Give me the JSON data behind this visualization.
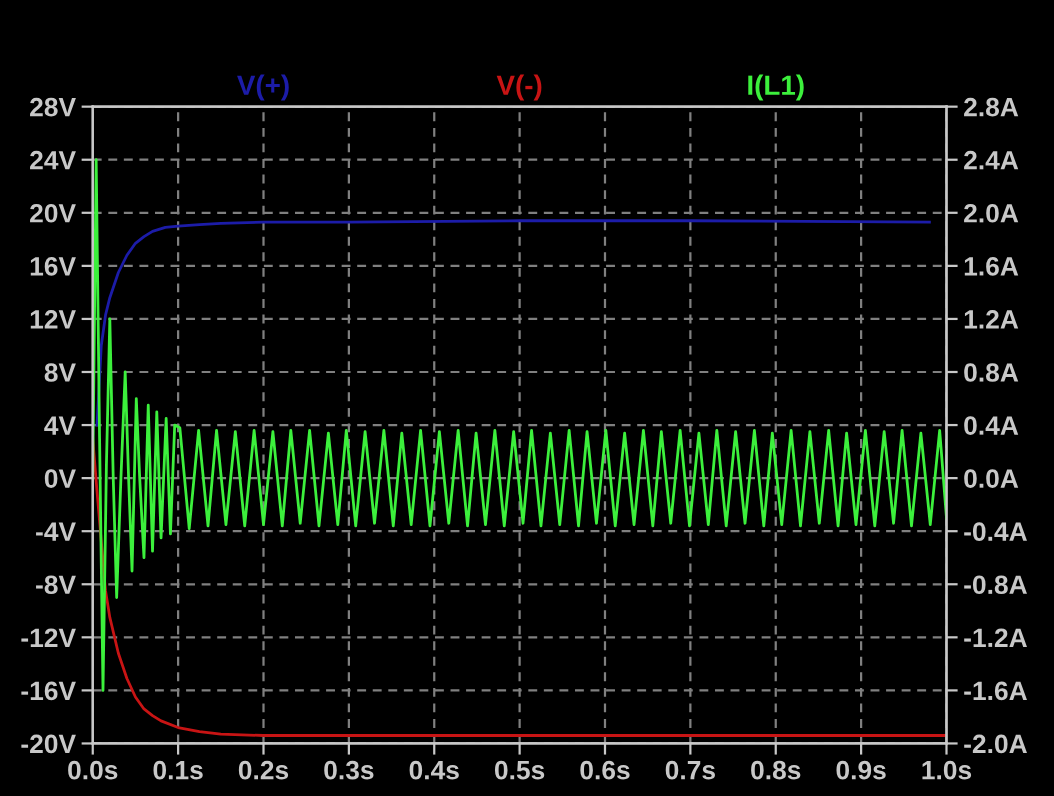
{
  "chart_data": {
    "type": "line",
    "xlim": [
      0,
      1.0
    ],
    "xticks": [
      {
        "value": 0,
        "label": "0.0s"
      },
      {
        "value": 0.1,
        "label": "0.1s"
      },
      {
        "value": 0.2,
        "label": "0.2s"
      },
      {
        "value": 0.3,
        "label": "0.3s"
      },
      {
        "value": 0.4,
        "label": "0.4s"
      },
      {
        "value": 0.5,
        "label": "0.5s"
      },
      {
        "value": 0.6,
        "label": "0.6s"
      },
      {
        "value": 0.7,
        "label": "0.7s"
      },
      {
        "value": 0.8,
        "label": "0.8s"
      },
      {
        "value": 0.9,
        "label": "0.9s"
      },
      {
        "value": 1.0,
        "label": "1.0s"
      }
    ],
    "ylim": [
      -20,
      28
    ],
    "yticks": [
      {
        "value": -20,
        "label": "-20V"
      },
      {
        "value": -16,
        "label": "-16V"
      },
      {
        "value": -12,
        "label": "-12V"
      },
      {
        "value": -8,
        "label": "-8V"
      },
      {
        "value": -4,
        "label": "-4V"
      },
      {
        "value": 0,
        "label": "0V"
      },
      {
        "value": 4,
        "label": "4V"
      },
      {
        "value": 8,
        "label": "8V"
      },
      {
        "value": 12,
        "label": "12V"
      },
      {
        "value": 16,
        "label": "16V"
      },
      {
        "value": 20,
        "label": "20V"
      },
      {
        "value": 24,
        "label": "24V"
      },
      {
        "value": 28,
        "label": "28V"
      }
    ],
    "y2lim": [
      -2.0,
      2.8
    ],
    "y2ticks": [
      {
        "value": -2.0,
        "label": "-2.0A"
      },
      {
        "value": -1.6,
        "label": "-1.6A"
      },
      {
        "value": -1.2,
        "label": "-1.2A"
      },
      {
        "value": -0.8,
        "label": "-0.8A"
      },
      {
        "value": -0.4,
        "label": "-0.4A"
      },
      {
        "value": 0,
        "label": "0.0A"
      },
      {
        "value": 0.4,
        "label": "0.4A"
      },
      {
        "value": 0.8,
        "label": "0.8A"
      },
      {
        "value": 1.2,
        "label": "1.2A"
      },
      {
        "value": 1.6,
        "label": "1.6A"
      },
      {
        "value": 2.0,
        "label": "2.0A"
      },
      {
        "value": 2.4,
        "label": "2.4A"
      },
      {
        "value": 2.8,
        "label": "2.8A"
      }
    ],
    "grid": true,
    "legend": "top",
    "line_style": "solid",
    "series": [
      {
        "name": "V(+)",
        "color": "#1c1ca8",
        "x": [
          0.005,
          0.01,
          0.015,
          0.02,
          0.03,
          0.04,
          0.05,
          0.06,
          0.07,
          0.085,
          0.1,
          0.125,
          0.15,
          0.2,
          0.3,
          0.5,
          0.7,
          0.98
        ],
        "values": [
          4,
          10,
          12.3,
          13.6,
          15.5,
          16.8,
          17.7,
          18.2,
          18.6,
          18.9,
          19.0,
          19.1,
          19.2,
          19.3,
          19.3,
          19.4,
          19.4,
          19.3
        ]
      },
      {
        "name": "V(-)",
        "color": "#c81414",
        "x": [
          0,
          0.005,
          0.015,
          0.02,
          0.03,
          0.04,
          0.05,
          0.06,
          0.07,
          0.08,
          0.1,
          0.125,
          0.15,
          0.2,
          0.3,
          0.5,
          0.7,
          1.0
        ],
        "values": [
          3,
          -1,
          -8.5,
          -10.5,
          -13.2,
          -15.1,
          -16.5,
          -17.4,
          -17.9,
          -18.3,
          -18.8,
          -19.1,
          -19.3,
          -19.4,
          -19.4,
          -19.4,
          -19.4,
          -19.4
        ]
      },
      {
        "name": "I(L1)",
        "color": "#3cf03c",
        "axis": "y2",
        "x": [
          0.0,
          0.004,
          0.008,
          0.012,
          0.016,
          0.02,
          0.024,
          0.028,
          0.033,
          0.038,
          0.042,
          0.046,
          0.051,
          0.055,
          0.06,
          0.065,
          0.07,
          0.075,
          0.08,
          0.086,
          0.091,
          0.096,
          0.102,
          0.113,
          0.124,
          0.135,
          0.145,
          0.156,
          0.167,
          0.178,
          0.189,
          0.2,
          0.211,
          0.222,
          0.232,
          0.243,
          0.254,
          0.265,
          0.276,
          0.287,
          0.297,
          0.308,
          0.319,
          0.33,
          0.341,
          0.352,
          0.362,
          0.373,
          0.384,
          0.395,
          0.406,
          0.417,
          0.428,
          0.439,
          0.449,
          0.46,
          0.471,
          0.482,
          0.493,
          0.504,
          0.514,
          0.525,
          0.536,
          0.547,
          0.558,
          0.569,
          0.579,
          0.59,
          0.601,
          0.612,
          0.623,
          0.634,
          0.645,
          0.656,
          0.666,
          0.677,
          0.688,
          0.699,
          0.71,
          0.721,
          0.731,
          0.742,
          0.753,
          0.764,
          0.775,
          0.786,
          0.796,
          0.807,
          0.818,
          0.829,
          0.84,
          0.851,
          0.862,
          0.873,
          0.883,
          0.894,
          0.905,
          0.916,
          0.927,
          0.938,
          0.948,
          0.959,
          0.97,
          0.981,
          0.992,
          1.0
        ],
        "values": [
          0,
          2.4,
          0.3,
          -1.6,
          0.1,
          1.2,
          0,
          -0.9,
          0,
          0.8,
          0,
          -0.7,
          0.6,
          0,
          -0.6,
          0.55,
          -0.55,
          0.5,
          -0.45,
          0.45,
          -0.42,
          0.4,
          0.38,
          -0.38,
          0.36,
          -0.36,
          0.36,
          -0.35,
          0.35,
          -0.36,
          0.36,
          -0.35,
          0.35,
          -0.36,
          0.36,
          -0.34,
          0.36,
          -0.36,
          0.34,
          -0.35,
          0.36,
          -0.36,
          0.35,
          -0.34,
          0.36,
          -0.36,
          0.34,
          -0.35,
          0.36,
          -0.36,
          0.35,
          -0.34,
          0.36,
          -0.36,
          0.34,
          -0.35,
          0.36,
          -0.36,
          0.35,
          -0.34,
          0.36,
          -0.36,
          0.34,
          -0.35,
          0.36,
          -0.36,
          0.35,
          -0.34,
          0.36,
          -0.36,
          0.34,
          -0.35,
          0.36,
          -0.36,
          0.35,
          -0.34,
          0.36,
          -0.36,
          0.34,
          -0.35,
          0.36,
          -0.36,
          0.35,
          -0.34,
          0.36,
          -0.36,
          0.34,
          -0.35,
          0.36,
          -0.36,
          0.35,
          -0.34,
          0.36,
          -0.36,
          0.34,
          -0.35,
          0.36,
          -0.36,
          0.35,
          -0.34,
          0.36,
          -0.36,
          0.34,
          -0.35,
          0.36,
          -0.3
        ]
      }
    ]
  }
}
